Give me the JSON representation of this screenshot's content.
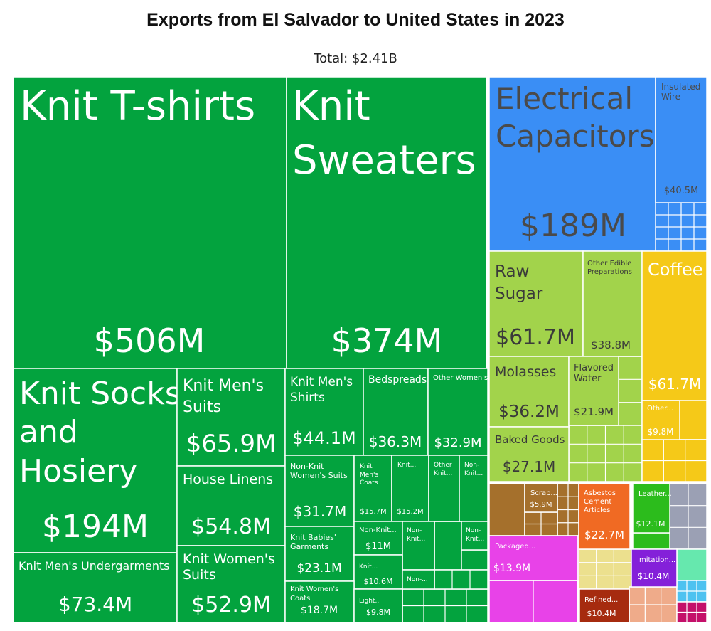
{
  "chart_data": {
    "type": "treemap",
    "title": "Exports from El Salvador to United States in 2023",
    "subtitle": "Total: $2.41B",
    "colors": {
      "textiles": "#03a33e",
      "machinery": "#3a8ef5",
      "machinery_light": "#46a2ff",
      "foodstuffs": "#a2d34b",
      "vegetable": "#f5c918",
      "metals": "#a5702c",
      "plastics": "#e842e8",
      "stone": "#ece08e",
      "minerals": "#f06a23",
      "mineral_fuels": "#a62b0f",
      "animal_hides": "#2cbc1c",
      "instruments": "#9ba0b4",
      "misc": "#8420d9",
      "pink_misc": "#efab8a",
      "teal_misc": "#66e8ae",
      "magenta_misc": "#c4106a",
      "blue_misc": "#4dc2f0"
    },
    "items": [
      {
        "name": "Knit T-shirts",
        "value_label": "$506M",
        "value_musd": 506,
        "category": "textiles"
      },
      {
        "name": "Knit Sweaters",
        "value_label": "$374M",
        "value_musd": 374,
        "category": "textiles"
      },
      {
        "name": "Knit Socks and Hosiery",
        "value_label": "$194M",
        "value_musd": 194,
        "category": "textiles"
      },
      {
        "name": "Knit Men's Undergarments",
        "value_label": "$73.4M",
        "value_musd": 73.4,
        "category": "textiles"
      },
      {
        "name": "Knit Men's Suits",
        "value_label": "$65.9M",
        "value_musd": 65.9,
        "category": "textiles"
      },
      {
        "name": "House Linens",
        "value_label": "$54.8M",
        "value_musd": 54.8,
        "category": "textiles"
      },
      {
        "name": "Knit Women's Suits",
        "value_label": "$52.9M",
        "value_musd": 52.9,
        "category": "textiles"
      },
      {
        "name": "Knit Men's Shirts",
        "value_label": "$44.1M",
        "value_musd": 44.1,
        "category": "textiles"
      },
      {
        "name": "Bedspreads",
        "value_label": "$36.3M",
        "value_musd": 36.3,
        "category": "textiles"
      },
      {
        "name": "Other Women's...",
        "value_label": "$32.9M",
        "value_musd": 32.9,
        "category": "textiles"
      },
      {
        "name": "Non-Knit Women's Suits",
        "value_label": "$31.7M",
        "value_musd": 31.7,
        "category": "textiles"
      },
      {
        "name": "Knit Men's Coats",
        "value_label": "$15.7M",
        "value_musd": 15.7,
        "category": "textiles"
      },
      {
        "name": "Knit...",
        "value_label": "$15.2M",
        "value_musd": 15.2,
        "category": "textiles"
      },
      {
        "name": "Other Knit...",
        "value_label": "",
        "category": "textiles"
      },
      {
        "name": "Non-Knit...",
        "value_label": "",
        "category": "textiles"
      },
      {
        "name": "Knit Babies' Garments",
        "value_label": "$23.1M",
        "value_musd": 23.1,
        "category": "textiles"
      },
      {
        "name": "Non-Knit...",
        "value_label": "$11M",
        "value_musd": 11,
        "category": "textiles"
      },
      {
        "name": "Non-Knit...",
        "value_label": "",
        "category": "textiles"
      },
      {
        "name": "Non-Knit...",
        "value_label": "",
        "category": "textiles"
      },
      {
        "name": "Knit...",
        "value_label": "$10.6M",
        "value_musd": 10.6,
        "category": "textiles"
      },
      {
        "name": "Non-...",
        "value_label": "",
        "category": "textiles"
      },
      {
        "name": "Knit Women's Coats",
        "value_label": "$18.7M",
        "value_musd": 18.7,
        "category": "textiles"
      },
      {
        "name": "Light...",
        "value_label": "$9.8M",
        "value_musd": 9.8,
        "category": "textiles"
      },
      {
        "name": "Electrical Capacitors",
        "value_label": "$189M",
        "value_musd": 189,
        "category": "machinery"
      },
      {
        "name": "Insulated Wire",
        "value_label": "$40.5M",
        "value_musd": 40.5,
        "category": "machinery"
      },
      {
        "name": "Raw Sugar",
        "value_label": "$61.7M",
        "value_musd": 61.7,
        "category": "foodstuffs"
      },
      {
        "name": "Other Edible Preparations",
        "value_label": "$38.8M",
        "value_musd": 38.8,
        "category": "foodstuffs"
      },
      {
        "name": "Molasses",
        "value_label": "$36.2M",
        "value_musd": 36.2,
        "category": "foodstuffs"
      },
      {
        "name": "Flavored Water",
        "value_label": "$21.9M",
        "value_musd": 21.9,
        "category": "foodstuffs"
      },
      {
        "name": "Baked Goods",
        "value_label": "$27.1M",
        "value_musd": 27.1,
        "category": "foodstuffs"
      },
      {
        "name": "Coffee",
        "value_label": "$61.7M",
        "value_musd": 61.7,
        "category": "vegetable"
      },
      {
        "name": "Other...",
        "value_label": "$9.8M",
        "value_musd": 9.8,
        "category": "vegetable"
      },
      {
        "name": "Scrap...",
        "value_label": "$5.9M",
        "value_musd": 5.9,
        "category": "metals"
      },
      {
        "name": "Asbestos Cement Articles",
        "value_label": "$22.7M",
        "value_musd": 22.7,
        "category": "minerals"
      },
      {
        "name": "Leather...",
        "value_label": "$12.1M",
        "value_musd": 12.1,
        "category": "animal_hides"
      },
      {
        "name": "Packaged...",
        "value_label": "$13.9M",
        "value_musd": 13.9,
        "category": "plastics"
      },
      {
        "name": "Imitation...",
        "value_label": "$10.4M",
        "value_musd": 10.4,
        "category": "misc"
      },
      {
        "name": "Refined...",
        "value_label": "$10.4M",
        "value_musd": 10.4,
        "category": "mineral_fuels"
      }
    ]
  }
}
